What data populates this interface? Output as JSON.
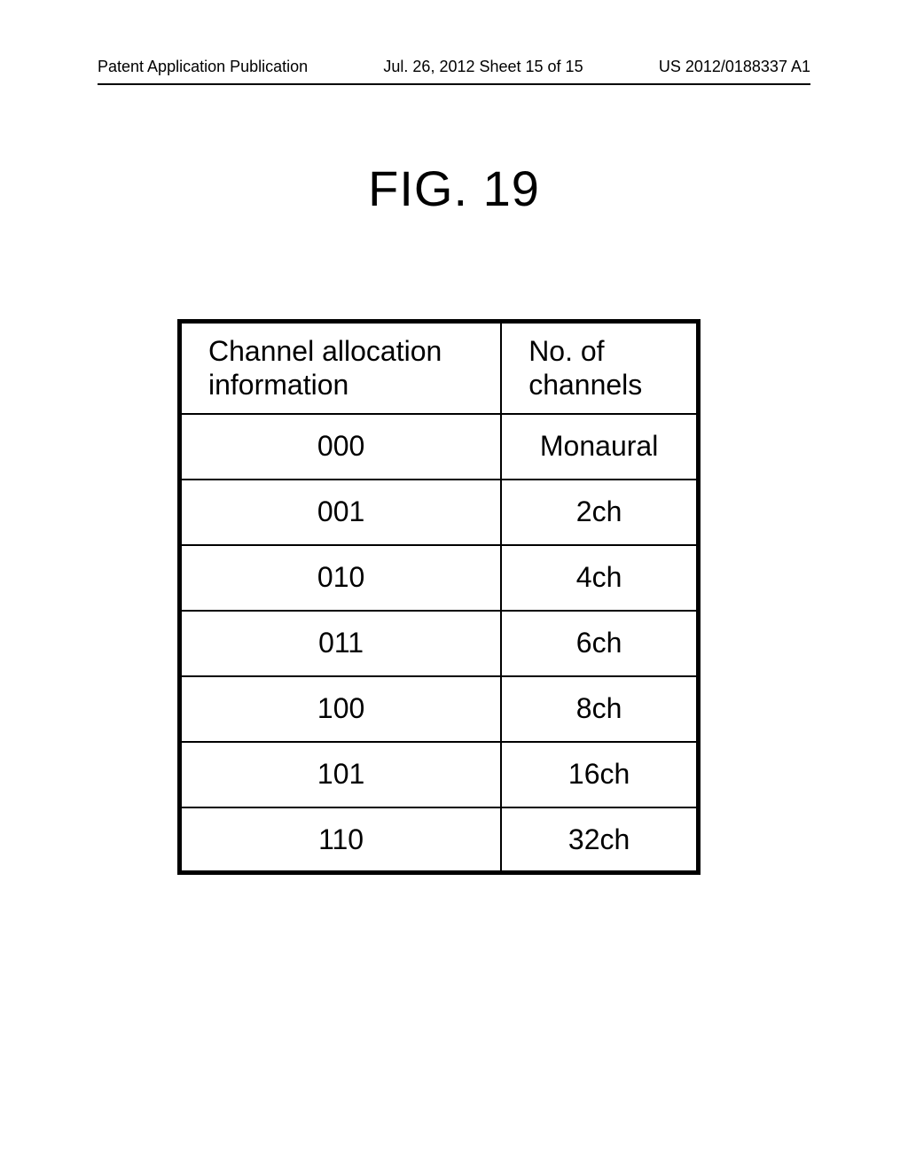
{
  "header": {
    "left": "Patent Application Publication",
    "center": "Jul. 26, 2012  Sheet 15 of 15",
    "right": "US 2012/0188337 A1"
  },
  "figure": {
    "title": "FIG. 19"
  },
  "table": {
    "type": "table",
    "columns": [
      {
        "label": "Channel  allocation\ninformation",
        "width": "62%",
        "align": "left"
      },
      {
        "label": "No. of\nchannels",
        "width": "38%",
        "align": "left"
      }
    ],
    "rows": [
      [
        "000",
        "Monaural"
      ],
      [
        "001",
        "2ch"
      ],
      [
        "010",
        "4ch"
      ],
      [
        "011",
        "6ch"
      ],
      [
        "100",
        "8ch"
      ],
      [
        "101",
        "16ch"
      ],
      [
        "110",
        "32ch"
      ]
    ],
    "border_color": "#000000",
    "outer_border_width": 5,
    "inner_border_width": 2,
    "font_size": 32,
    "header_font_size": 32,
    "background_color": "#ffffff",
    "text_color": "#000000"
  }
}
